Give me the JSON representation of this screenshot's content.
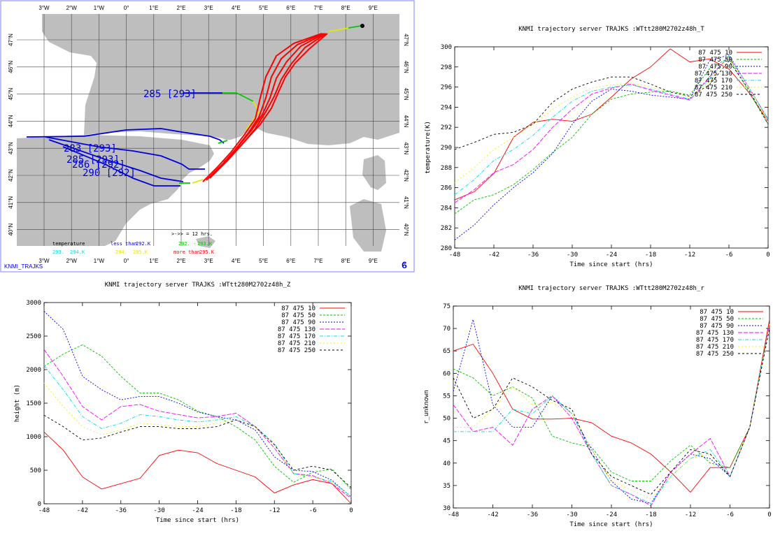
{
  "colors": {
    "land": "#bebebe",
    "sea": "#ffffff",
    "frame": "#8080ff",
    "traj_blue": "#0000dd",
    "traj_green": "#00cc00",
    "traj_yellow": "#f0f000",
    "traj_cyan": "#00e0e0",
    "traj_red": "#ff0000"
  },
  "map": {
    "lon_labels_top": [
      "3°W",
      "2°W",
      "1°W",
      "0°",
      "1°E",
      "2°E",
      "3°E",
      "4°E",
      "5°E",
      "6°E",
      "7°E",
      "8°E",
      "9°E"
    ],
    "lon_labels_bottom": [
      "3°W",
      "2°W",
      "1°W",
      "0°",
      "1°E",
      "2°E",
      "3°E",
      "4°E",
      "5°E",
      "6°E",
      "7°E",
      "8°E",
      "9°E"
    ],
    "lat_labels": [
      "47°N",
      "46°N",
      "45°N",
      "44°N",
      "43°N",
      "42°N",
      "41°N",
      "40°N"
    ],
    "trajectory_labels": [
      "285 [293]",
      "283 [293]",
      "285 [293]",
      "286 [292]",
      "290 [292]"
    ],
    "footer_left": "KNMI_TRAJKS",
    "logo_glyph": "ϐ",
    "legend": {
      "temperature": "temperature",
      "arrow_note": ">->> = 12 hrs.",
      "less_than": "less than",
      "less_value": "292.K",
      "range_green": "292. -",
      "range_green_end": "293.K",
      "more_than": "more than",
      "more_value": "295.K",
      "swatch_cyan_a": "293.",
      "swatch_cyan_b": "294.K",
      "swatch_yellow_a": "294.",
      "swatch_yellow_b": "295.K"
    }
  },
  "series_names": [
    "87 475 10",
    "87 475 50",
    "87 475 90",
    "87 475 130",
    "87 475 170",
    "87 475 210",
    "87 475 250"
  ],
  "series_colors": [
    "#ff0000",
    "#00c000",
    "#0000ff",
    "#ff00ff",
    "#00e0e0",
    "#f0f000",
    "#000000"
  ],
  "series_dash": [
    "",
    "3,2",
    "2,2",
    "6,2",
    "5,2,1,2",
    "2,3",
    "3,3"
  ],
  "chart_data": [
    {
      "type": "line",
      "title": "KNMI trajectory server TRAJKS :WTtt280M2702z48h_T",
      "xlabel": "Time since start (hrs)",
      "ylabel": "temperature(K)",
      "xlim": [
        -48,
        0
      ],
      "ylim": [
        280,
        300
      ],
      "xticks": [
        -48,
        -42,
        -36,
        -30,
        -24,
        -18,
        -12,
        -6,
        0
      ],
      "yticks": [
        280,
        282,
        284,
        286,
        288,
        290,
        292,
        294,
        296,
        298,
        300
      ],
      "x": [
        -48,
        -45,
        -42,
        -39,
        -36,
        -33,
        -30,
        -27,
        -24,
        -21,
        -18,
        -15,
        -12,
        -9,
        -6,
        -3,
        0
      ],
      "series": [
        {
          "name": "87 475 10",
          "values": [
            284.8,
            285.6,
            287.4,
            291.0,
            292.5,
            292.8,
            292.6,
            293.3,
            295.0,
            296.8,
            298.0,
            299.8,
            298.5,
            298.8,
            297.8,
            295.5,
            292.6
          ]
        },
        {
          "name": "87 475 50",
          "values": [
            283.4,
            284.8,
            285.3,
            286.3,
            287.8,
            289.5,
            291.0,
            293.3,
            294.8,
            295.3,
            295.5,
            295.6,
            295.2,
            297.8,
            298.9,
            295.6,
            292.3
          ]
        },
        {
          "name": "87 475 90",
          "values": [
            280.8,
            282.3,
            284.3,
            286.0,
            287.5,
            289.4,
            292.3,
            294.6,
            295.8,
            295.6,
            295.2,
            295.0,
            294.8,
            298.6,
            299.2,
            296.0,
            292.8
          ]
        },
        {
          "name": "87 475 130",
          "values": [
            284.5,
            285.8,
            287.5,
            288.3,
            289.8,
            292.0,
            293.8,
            295.3,
            295.9,
            296.3,
            295.7,
            295.2,
            294.7,
            297.0,
            299.0,
            296.0,
            292.8
          ]
        },
        {
          "name": "87 475 170",
          "values": [
            285.3,
            286.8,
            288.7,
            289.8,
            291.2,
            293.0,
            294.6,
            295.6,
            296.0,
            296.2,
            295.8,
            295.3,
            294.8,
            296.8,
            299.1,
            296.0,
            292.8
          ]
        },
        {
          "name": "87 475 210",
          "values": [
            286.5,
            288.0,
            289.8,
            291.0,
            292.3,
            293.8,
            295.0,
            295.9,
            296.2,
            296.4,
            296.0,
            295.5,
            295.0,
            296.5,
            299.0,
            296.0,
            292.6
          ]
        },
        {
          "name": "87 475 250",
          "values": [
            289.8,
            290.5,
            291.3,
            291.5,
            292.3,
            294.5,
            295.8,
            296.5,
            297.0,
            297.0,
            296.3,
            295.5,
            295.1,
            296.2,
            298.6,
            295.8,
            292.3
          ]
        }
      ]
    },
    {
      "type": "line",
      "title": "KNMI trajectory server TRAJKS :WTtt280M2702z48h_Z",
      "xlabel": "Time since start (hrs)",
      "ylabel": "height (m)",
      "xlim": [
        -48,
        0
      ],
      "ylim": [
        0,
        3000
      ],
      "xticks": [
        -48,
        -42,
        -36,
        -30,
        -24,
        -18,
        -12,
        -6,
        0
      ],
      "yticks": [
        0,
        500,
        1000,
        1500,
        2000,
        2500,
        3000
      ],
      "x": [
        -48,
        -45,
        -42,
        -39,
        -36,
        -33,
        -30,
        -27,
        -24,
        -21,
        -18,
        -15,
        -12,
        -9,
        -6,
        -3,
        0
      ],
      "series": [
        {
          "name": "87 475 10",
          "values": [
            1070,
            800,
            400,
            220,
            300,
            380,
            720,
            800,
            760,
            600,
            500,
            400,
            160,
            280,
            360,
            300,
            0
          ]
        },
        {
          "name": "87 475 50",
          "values": [
            2050,
            2230,
            2370,
            2200,
            1900,
            1650,
            1650,
            1550,
            1380,
            1300,
            1150,
            950,
            560,
            320,
            470,
            520,
            210
          ]
        },
        {
          "name": "87 475 90",
          "values": [
            2870,
            2600,
            1900,
            1700,
            1550,
            1600,
            1600,
            1500,
            1370,
            1300,
            1250,
            1100,
            700,
            500,
            480,
            350,
            100
          ]
        },
        {
          "name": "87 475 130",
          "values": [
            2300,
            1900,
            1450,
            1250,
            1450,
            1480,
            1380,
            1330,
            1280,
            1300,
            1350,
            1150,
            830,
            450,
            420,
            300,
            80
          ]
        },
        {
          "name": "87 475 170",
          "values": [
            2060,
            1700,
            1300,
            1120,
            1200,
            1330,
            1300,
            1250,
            1220,
            1250,
            1300,
            1150,
            900,
            450,
            400,
            330,
            110
          ]
        },
        {
          "name": "87 475 210",
          "values": [
            1800,
            1450,
            1150,
            1030,
            1100,
            1200,
            1180,
            1150,
            1150,
            1200,
            1250,
            1150,
            870,
            440,
            400,
            320,
            100
          ]
        },
        {
          "name": "87 475 250",
          "values": [
            1320,
            1150,
            950,
            980,
            1070,
            1150,
            1150,
            1120,
            1120,
            1150,
            1250,
            1150,
            880,
            500,
            560,
            500,
            240
          ]
        }
      ]
    },
    {
      "type": "line",
      "title": "KNMI trajectory server TRAJKS :WTtt280M2702z48h_r",
      "xlabel": "Time since start (hrs)",
      "ylabel": "r_unknown",
      "xlim": [
        -48,
        0
      ],
      "ylim": [
        30,
        75
      ],
      "xticks": [
        -48,
        -42,
        -36,
        -30,
        -24,
        -18,
        -12,
        -6,
        0
      ],
      "yticks": [
        30,
        35,
        40,
        45,
        50,
        55,
        60,
        65,
        70,
        75
      ],
      "x": [
        -48,
        -45,
        -42,
        -39,
        -36,
        -33,
        -30,
        -27,
        -24,
        -21,
        -18,
        -15,
        -12,
        -9,
        -6,
        -3,
        0
      ],
      "series": [
        {
          "name": "87 475 10",
          "values": [
            65,
            66.5,
            60,
            52,
            49.8,
            49.8,
            50,
            49,
            46,
            44.5,
            42,
            38,
            33.5,
            39,
            39,
            48,
            72
          ]
        },
        {
          "name": "87 475 50",
          "values": [
            61,
            59,
            55,
            57,
            54.5,
            46,
            44.5,
            43.5,
            38,
            36,
            36,
            40.5,
            44,
            40,
            39,
            48,
            71
          ]
        },
        {
          "name": "87 475 90",
          "values": [
            56,
            72,
            53,
            48,
            48,
            55,
            51,
            43,
            36,
            32,
            31,
            38,
            42,
            41,
            37,
            48,
            71
          ]
        },
        {
          "name": "87 475 130",
          "values": [
            53,
            47,
            48,
            44,
            52,
            55,
            50,
            42,
            35,
            33,
            30.5,
            38,
            42,
            45.5,
            37,
            48,
            71
          ]
        },
        {
          "name": "87 475 170",
          "values": [
            47,
            47,
            47,
            52,
            51,
            55,
            51,
            42,
            35,
            33,
            31,
            37,
            41,
            43,
            37,
            48,
            71
          ]
        },
        {
          "name": "87 475 210",
          "values": [
            48,
            48,
            52,
            57,
            53,
            53.5,
            51,
            43,
            36,
            34,
            32,
            37,
            41,
            42,
            37,
            48,
            71
          ]
        },
        {
          "name": "87 475 250",
          "values": [
            59,
            50,
            52,
            59,
            57,
            54,
            52,
            42,
            37,
            35,
            33,
            38,
            43,
            42,
            37,
            48,
            70
          ]
        }
      ]
    }
  ]
}
